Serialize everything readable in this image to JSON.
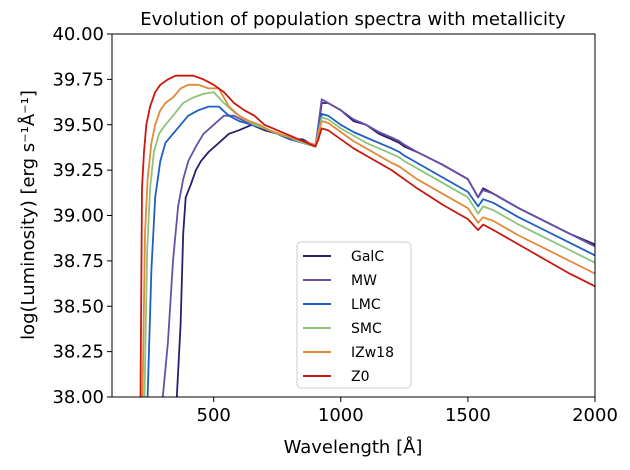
{
  "chart_data": {
    "type": "line",
    "title": "Evolution of population spectra with metallicity",
    "xlabel": "Wavelength [Å]",
    "ylabel": "log(Luminosity) [erg s⁻¹Å⁻¹]",
    "xlim": [
      100,
      2000
    ],
    "ylim": [
      38.0,
      40.0
    ],
    "xticks": [
      500,
      1000,
      1500,
      2000
    ],
    "yticks": [
      38.0,
      38.25,
      38.5,
      38.75,
      39.0,
      39.25,
      39.5,
      39.75,
      40.0
    ],
    "grid": false,
    "legend_position": "lower-center",
    "series": [
      {
        "name": "GalC",
        "color": "#2d1e6b",
        "x": [
          355,
          370,
          380,
          390,
          410,
          430,
          450,
          480,
          520,
          560,
          600,
          650,
          700,
          750,
          800,
          850,
          900,
          912,
          925,
          950,
          1000,
          1050,
          1100,
          1150,
          1200,
          1230,
          1250,
          1300,
          1400,
          1500,
          1540,
          1560,
          1600,
          1700,
          1800,
          1900,
          2000
        ],
        "y": [
          38.0,
          38.4,
          38.9,
          39.1,
          39.17,
          39.25,
          39.3,
          39.35,
          39.4,
          39.45,
          39.47,
          39.5,
          39.47,
          39.45,
          39.42,
          39.42,
          39.38,
          39.48,
          39.62,
          39.62,
          39.58,
          39.52,
          39.5,
          39.45,
          39.42,
          39.4,
          39.38,
          39.35,
          39.28,
          39.2,
          39.1,
          39.15,
          39.12,
          39.04,
          38.97,
          38.9,
          38.84
        ]
      },
      {
        "name": "MW",
        "color": "#6a4fa6",
        "x": [
          300,
          320,
          340,
          360,
          380,
          400,
          430,
          460,
          500,
          540,
          580,
          620,
          660,
          700,
          750,
          800,
          850,
          900,
          912,
          925,
          950,
          1000,
          1050,
          1100,
          1150,
          1200,
          1230,
          1250,
          1300,
          1400,
          1500,
          1540,
          1560,
          1600,
          1700,
          1800,
          1900,
          2000
        ],
        "y": [
          38.0,
          38.3,
          38.75,
          39.05,
          39.2,
          39.3,
          39.38,
          39.45,
          39.5,
          39.55,
          39.55,
          39.52,
          39.5,
          39.48,
          39.45,
          39.43,
          39.4,
          39.38,
          39.5,
          39.64,
          39.62,
          39.58,
          39.53,
          39.5,
          39.46,
          39.43,
          39.41,
          39.39,
          39.35,
          39.28,
          39.2,
          39.1,
          39.14,
          39.12,
          39.04,
          38.97,
          38.9,
          38.83
        ]
      },
      {
        "name": "LMC",
        "color": "#1f5fc4",
        "x": [
          240,
          255,
          270,
          290,
          310,
          340,
          370,
          400,
          440,
          480,
          520,
          560,
          600,
          650,
          700,
          750,
          800,
          850,
          900,
          912,
          925,
          950,
          1000,
          1050,
          1100,
          1150,
          1200,
          1230,
          1250,
          1300,
          1400,
          1500,
          1540,
          1560,
          1600,
          1700,
          1800,
          1900,
          2000
        ],
        "y": [
          38.0,
          38.7,
          39.1,
          39.3,
          39.4,
          39.45,
          39.5,
          39.55,
          39.58,
          39.6,
          39.6,
          39.55,
          39.52,
          39.5,
          39.48,
          39.45,
          39.42,
          39.4,
          39.38,
          39.48,
          39.56,
          39.55,
          39.5,
          39.46,
          39.43,
          39.4,
          39.37,
          39.35,
          39.33,
          39.29,
          39.21,
          39.13,
          39.05,
          39.09,
          39.07,
          38.99,
          38.92,
          38.85,
          38.78
        ]
      },
      {
        "name": "SMC",
        "color": "#8dc47a",
        "x": [
          228,
          238,
          250,
          265,
          285,
          310,
          340,
          380,
          420,
          460,
          500,
          540,
          580,
          620,
          660,
          700,
          750,
          800,
          850,
          900,
          912,
          925,
          950,
          1000,
          1050,
          1100,
          1150,
          1200,
          1230,
          1250,
          1300,
          1400,
          1500,
          1540,
          1560,
          1600,
          1700,
          1800,
          1900,
          2000
        ],
        "y": [
          38.0,
          38.8,
          39.15,
          39.35,
          39.45,
          39.5,
          39.55,
          39.62,
          39.65,
          39.67,
          39.68,
          39.62,
          39.57,
          39.53,
          39.5,
          39.48,
          39.45,
          39.43,
          39.4,
          39.38,
          39.46,
          39.54,
          39.53,
          39.48,
          39.44,
          39.4,
          39.37,
          39.34,
          39.32,
          39.3,
          39.26,
          39.18,
          39.1,
          39.01,
          39.05,
          39.03,
          38.95,
          38.88,
          38.81,
          38.74
        ]
      },
      {
        "name": "IZw18",
        "color": "#e08a3a",
        "x": [
          220,
          230,
          240,
          255,
          270,
          290,
          310,
          340,
          370,
          400,
          440,
          480,
          520,
          560,
          600,
          640,
          680,
          720,
          760,
          800,
          850,
          900,
          912,
          925,
          950,
          1000,
          1050,
          1100,
          1150,
          1200,
          1230,
          1250,
          1300,
          1400,
          1500,
          1540,
          1560,
          1600,
          1700,
          1800,
          1900,
          2000
        ],
        "y": [
          38.0,
          38.9,
          39.2,
          39.4,
          39.5,
          39.58,
          39.62,
          39.65,
          39.7,
          39.72,
          39.72,
          39.7,
          39.7,
          39.6,
          39.55,
          39.52,
          39.5,
          39.47,
          39.45,
          39.43,
          39.41,
          39.39,
          39.45,
          39.52,
          39.51,
          39.46,
          39.41,
          39.37,
          39.33,
          39.29,
          39.27,
          39.25,
          39.2,
          39.12,
          39.04,
          38.96,
          38.99,
          38.97,
          38.89,
          38.82,
          38.75,
          38.68
        ]
      },
      {
        "name": "Z0",
        "color": "#c81810",
        "x": [
          212,
          218,
          226,
          235,
          250,
          270,
          290,
          320,
          350,
          380,
          420,
          460,
          500,
          540,
          580,
          620,
          660,
          700,
          750,
          800,
          850,
          900,
          912,
          925,
          950,
          1000,
          1050,
          1100,
          1150,
          1200,
          1230,
          1250,
          1300,
          1400,
          1500,
          1540,
          1560,
          1600,
          1700,
          1800,
          1900,
          2000
        ],
        "y": [
          38.0,
          39.15,
          39.35,
          39.5,
          39.6,
          39.68,
          39.72,
          39.75,
          39.77,
          39.77,
          39.77,
          39.75,
          39.72,
          39.68,
          39.62,
          39.58,
          39.55,
          39.5,
          39.47,
          39.44,
          39.41,
          39.38,
          39.42,
          39.48,
          39.47,
          39.42,
          39.37,
          39.33,
          39.29,
          39.25,
          39.22,
          39.2,
          39.15,
          39.06,
          38.98,
          38.92,
          38.95,
          38.92,
          38.84,
          38.76,
          38.68,
          38.61
        ]
      }
    ]
  }
}
